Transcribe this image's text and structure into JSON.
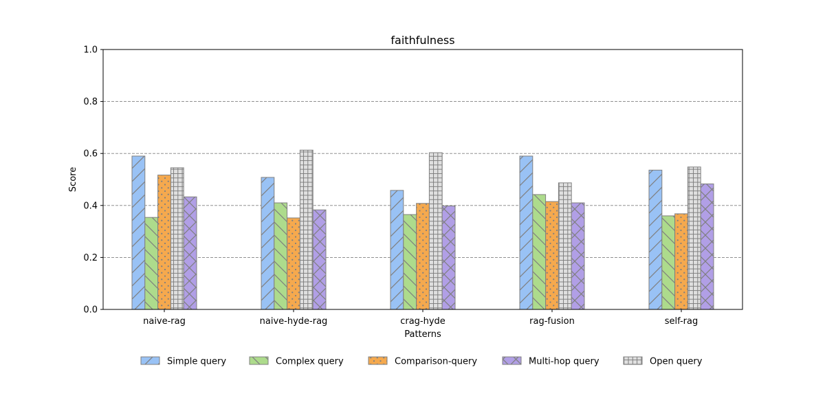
{
  "chart_data": {
    "type": "bar",
    "title": "faithfulness",
    "xlabel": "Patterns",
    "ylabel": "Score",
    "ylim": [
      0,
      1.0
    ],
    "yticks": [
      "0.0",
      "0.2",
      "0.4",
      "0.6",
      "0.8",
      "1.0"
    ],
    "grid": "y-dashed",
    "legend_position": "bottom",
    "categories": [
      "naive-rag",
      "naive-hyde-rag",
      "crag-hyde",
      "rag-fusion",
      "self-rag"
    ],
    "series": [
      {
        "name": "Simple query",
        "color": "#99c2f5",
        "hatch": "diagonal-forward",
        "values": [
          0.59,
          0.508,
          0.458,
          0.59,
          0.536
        ]
      },
      {
        "name": "Complex query",
        "color": "#addb8c",
        "hatch": "diagonal-back",
        "values": [
          0.354,
          0.41,
          0.365,
          0.442,
          0.36
        ]
      },
      {
        "name": "Comparison-query",
        "color": "#f5a94e",
        "hatch": "dots",
        "values": [
          0.517,
          0.352,
          0.408,
          0.415,
          0.368
        ]
      },
      {
        "name": "Open query",
        "color": "#e0e0e0",
        "hatch": "grid",
        "values": [
          0.545,
          0.613,
          0.603,
          0.487,
          0.548
        ]
      },
      {
        "name": "Multi-hop query",
        "color": "#b19fe6",
        "hatch": "cross",
        "values": [
          0.433,
          0.383,
          0.398,
          0.41,
          0.483
        ]
      }
    ],
    "legend_order": [
      "Simple query",
      "Complex query",
      "Comparison-query",
      "Multi-hop query",
      "Open query"
    ]
  }
}
